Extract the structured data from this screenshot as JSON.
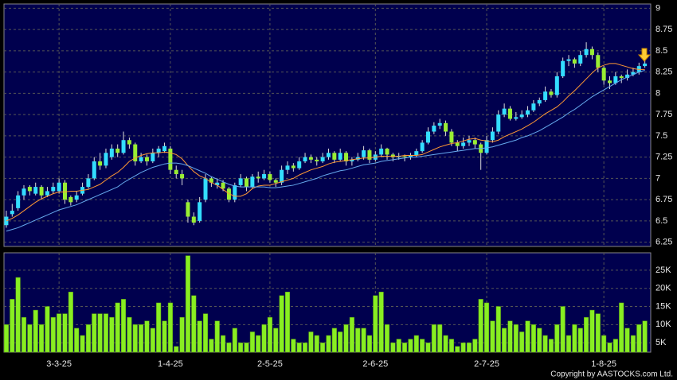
{
  "chart_data": [
    {
      "type": "candlestick",
      "up_color": "#33ddff",
      "down_color": "#99ee33",
      "wick_color": "#dddddd",
      "xlim": [
        -0.4,
        110
      ],
      "xticks": [
        {
          "value": 9,
          "label": "3-3-25"
        },
        {
          "value": 28,
          "label": "1-4-25"
        },
        {
          "value": 45,
          "label": "2-5-25"
        },
        {
          "value": 63,
          "label": "2-6-25"
        },
        {
          "value": 82,
          "label": "2-7-25"
        },
        {
          "value": 102,
          "label": "1-8-25"
        }
      ],
      "ylim": [
        6.2,
        9.05
      ],
      "yticks": [
        6.25,
        6.5,
        6.75,
        7,
        7.25,
        7.5,
        7.75,
        8,
        8.25,
        8.5,
        8.75,
        9
      ],
      "grid": true,
      "ohlc": [
        [
          6.45,
          6.62,
          6.42,
          6.55
        ],
        [
          6.58,
          6.7,
          6.55,
          6.62
        ],
        [
          6.65,
          6.85,
          6.62,
          6.8
        ],
        [
          6.8,
          6.92,
          6.75,
          6.88
        ],
        [
          6.9,
          6.92,
          6.8,
          6.85
        ],
        [
          6.82,
          6.95,
          6.8,
          6.9
        ],
        [
          6.9,
          6.92,
          6.75,
          6.8
        ],
        [
          6.8,
          6.9,
          6.78,
          6.85
        ],
        [
          6.85,
          6.95,
          6.82,
          6.9
        ],
        [
          6.85,
          7.0,
          6.82,
          6.95
        ],
        [
          6.95,
          6.98,
          6.7,
          6.75
        ],
        [
          6.78,
          6.8,
          6.68,
          6.72
        ],
        [
          6.75,
          6.85,
          6.72,
          6.8
        ],
        [
          6.82,
          6.95,
          6.8,
          6.9
        ],
        [
          6.9,
          7.05,
          6.88,
          7.0
        ],
        [
          7.0,
          7.25,
          6.98,
          7.2
        ],
        [
          7.2,
          7.3,
          7.1,
          7.15
        ],
        [
          7.15,
          7.35,
          7.12,
          7.3
        ],
        [
          7.25,
          7.4,
          7.22,
          7.35
        ],
        [
          7.35,
          7.4,
          7.25,
          7.3
        ],
        [
          7.3,
          7.55,
          7.28,
          7.45
        ],
        [
          7.45,
          7.48,
          7.35,
          7.4
        ],
        [
          7.4,
          7.42,
          7.15,
          7.2
        ],
        [
          7.2,
          7.3,
          7.18,
          7.25
        ],
        [
          7.25,
          7.28,
          7.15,
          7.2
        ],
        [
          7.2,
          7.35,
          7.18,
          7.3
        ],
        [
          7.3,
          7.38,
          7.25,
          7.35
        ],
        [
          7.32,
          7.42,
          7.3,
          7.38
        ],
        [
          7.35,
          7.38,
          7.05,
          7.1
        ],
        [
          7.1,
          7.15,
          7.0,
          7.05
        ],
        [
          7.05,
          7.1,
          6.92,
          7.0
        ],
        [
          6.72,
          6.75,
          6.48,
          6.55
        ],
        [
          6.55,
          6.6,
          6.45,
          6.48
        ],
        [
          6.5,
          6.78,
          6.48,
          6.72
        ],
        [
          6.75,
          7.05,
          6.72,
          7.0
        ],
        [
          7.0,
          7.02,
          6.9,
          6.95
        ],
        [
          6.92,
          7.0,
          6.88,
          6.95
        ],
        [
          6.95,
          6.98,
          6.85,
          6.88
        ],
        [
          6.88,
          6.9,
          6.72,
          6.75
        ],
        [
          6.75,
          6.95,
          6.72,
          6.92
        ],
        [
          6.92,
          7.05,
          6.9,
          7.0
        ],
        [
          7.0,
          7.02,
          6.85,
          6.9
        ],
        [
          6.9,
          7.05,
          6.88,
          7.02
        ],
        [
          7.02,
          7.08,
          6.95,
          7.0
        ],
        [
          7.0,
          7.1,
          6.98,
          7.05
        ],
        [
          7.05,
          7.08,
          6.95,
          6.98
        ],
        [
          6.98,
          7.0,
          6.9,
          6.95
        ],
        [
          6.95,
          7.15,
          6.92,
          7.1
        ],
        [
          7.1,
          7.2,
          7.05,
          7.15
        ],
        [
          7.15,
          7.18,
          7.08,
          7.12
        ],
        [
          7.12,
          7.25,
          7.1,
          7.2
        ],
        [
          7.2,
          7.3,
          7.18,
          7.25
        ],
        [
          7.25,
          7.28,
          7.18,
          7.22
        ],
        [
          7.22,
          7.25,
          7.15,
          7.2
        ],
        [
          7.2,
          7.3,
          7.18,
          7.25
        ],
        [
          7.25,
          7.35,
          7.22,
          7.3
        ],
        [
          7.3,
          7.32,
          7.18,
          7.22
        ],
        [
          7.22,
          7.35,
          7.2,
          7.3
        ],
        [
          7.3,
          7.32,
          7.15,
          7.2
        ],
        [
          7.2,
          7.25,
          7.15,
          7.22
        ],
        [
          7.22,
          7.3,
          7.2,
          7.25
        ],
        [
          7.25,
          7.38,
          7.22,
          7.33
        ],
        [
          7.33,
          7.35,
          7.18,
          7.22
        ],
        [
          7.22,
          7.32,
          7.2,
          7.28
        ],
        [
          7.28,
          7.4,
          7.25,
          7.35
        ],
        [
          7.35,
          7.36,
          7.22,
          7.28
        ],
        [
          7.28,
          7.3,
          7.2,
          7.25
        ],
        [
          7.25,
          7.3,
          7.22,
          7.26
        ],
        [
          7.26,
          7.28,
          7.2,
          7.25
        ],
        [
          7.25,
          7.3,
          7.22,
          7.27
        ],
        [
          7.27,
          7.35,
          7.25,
          7.32
        ],
        [
          7.32,
          7.45,
          7.3,
          7.42
        ],
        [
          7.42,
          7.6,
          7.4,
          7.55
        ],
        [
          7.55,
          7.66,
          7.52,
          7.62
        ],
        [
          7.62,
          7.7,
          7.58,
          7.65
        ],
        [
          7.65,
          7.68,
          7.5,
          7.55
        ],
        [
          7.55,
          7.58,
          7.38,
          7.42
        ],
        [
          7.42,
          7.45,
          7.32,
          7.38
        ],
        [
          7.38,
          7.48,
          7.35,
          7.42
        ],
        [
          7.42,
          7.5,
          7.38,
          7.45
        ],
        [
          7.45,
          7.48,
          7.35,
          7.4
        ],
        [
          7.4,
          7.42,
          7.1,
          7.3
        ],
        [
          7.3,
          7.5,
          7.28,
          7.45
        ],
        [
          7.45,
          7.6,
          7.42,
          7.55
        ],
        [
          7.55,
          7.8,
          7.52,
          7.75
        ],
        [
          7.75,
          7.88,
          7.72,
          7.82
        ],
        [
          7.82,
          7.85,
          7.68,
          7.7
        ],
        [
          7.7,
          7.78,
          7.68,
          7.72
        ],
        [
          7.72,
          7.8,
          7.7,
          7.75
        ],
        [
          7.75,
          7.85,
          7.72,
          7.8
        ],
        [
          7.8,
          7.92,
          7.78,
          7.88
        ],
        [
          7.88,
          7.95,
          7.85,
          7.92
        ],
        [
          7.92,
          8.08,
          7.9,
          8.02
        ],
        [
          8.02,
          8.05,
          7.95,
          7.98
        ],
        [
          7.98,
          8.25,
          7.95,
          8.2
        ],
        [
          8.2,
          8.42,
          8.18,
          8.38
        ],
        [
          8.38,
          8.45,
          8.32,
          8.4
        ],
        [
          8.4,
          8.42,
          8.3,
          8.35
        ],
        [
          8.35,
          8.5,
          8.32,
          8.45
        ],
        [
          8.45,
          8.6,
          8.42,
          8.52
        ],
        [
          8.52,
          8.55,
          8.4,
          8.45
        ],
        [
          8.45,
          8.48,
          8.25,
          8.3
        ],
        [
          8.3,
          8.32,
          8.1,
          8.15
        ],
        [
          8.15,
          8.2,
          8.05,
          8.12
        ],
        [
          8.12,
          8.25,
          8.1,
          8.2
        ],
        [
          8.2,
          8.22,
          8.12,
          8.18
        ],
        [
          8.18,
          8.28,
          8.15,
          8.22
        ],
        [
          8.22,
          8.3,
          8.2,
          8.25
        ],
        [
          8.25,
          8.36,
          8.22,
          8.32
        ],
        [
          8.32,
          8.4,
          8.3,
          8.35
        ]
      ],
      "series": [
        {
          "color": "#ff9933",
          "values": [
            6.5,
            6.53,
            6.57,
            6.62,
            6.67,
            6.72,
            6.76,
            6.79,
            6.82,
            6.84,
            6.84,
            6.85,
            6.85,
            6.86,
            6.87,
            6.9,
            6.93,
            6.98,
            7.03,
            7.07,
            7.13,
            7.2,
            7.24,
            7.27,
            7.29,
            7.3,
            7.3,
            7.31,
            7.3,
            7.28,
            7.23,
            7.15,
            7.08,
            7.03,
            7.0,
            6.95,
            6.92,
            6.87,
            6.82,
            6.79,
            6.79,
            6.82,
            6.88,
            6.91,
            6.92,
            6.92,
            6.94,
            6.96,
            6.98,
            7.0,
            7.04,
            7.07,
            7.1,
            7.12,
            7.14,
            7.17,
            7.19,
            7.2,
            7.21,
            7.22,
            7.23,
            7.24,
            7.24,
            7.25,
            7.26,
            7.26,
            7.26,
            7.26,
            7.27,
            7.27,
            7.27,
            7.28,
            7.31,
            7.34,
            7.37,
            7.39,
            7.41,
            7.42,
            7.44,
            7.46,
            7.47,
            7.45,
            7.44,
            7.43,
            7.45,
            7.49,
            7.52,
            7.55,
            7.58,
            7.62,
            7.66,
            7.71,
            7.76,
            7.8,
            7.84,
            7.9,
            7.97,
            8.03,
            8.1,
            8.17,
            8.24,
            8.3,
            8.33,
            8.35,
            8.35,
            8.33,
            8.31,
            8.29,
            8.28,
            8.28
          ]
        },
        {
          "color": "#66aaee",
          "values": [
            6.38,
            6.4,
            6.42,
            6.45,
            6.48,
            6.51,
            6.54,
            6.57,
            6.6,
            6.63,
            6.65,
            6.67,
            6.69,
            6.72,
            6.75,
            6.78,
            6.81,
            6.84,
            6.87,
            6.9,
            6.95,
            6.99,
            7.03,
            7.07,
            7.1,
            7.13,
            7.15,
            7.17,
            7.18,
            7.18,
            7.17,
            7.15,
            7.12,
            7.09,
            7.06,
            7.02,
            6.99,
            6.96,
            6.93,
            6.91,
            6.9,
            6.9,
            6.9,
            6.9,
            6.9,
            6.89,
            6.89,
            6.9,
            6.91,
            6.92,
            6.94,
            6.96,
            6.98,
            7.0,
            7.03,
            7.05,
            7.07,
            7.09,
            7.1,
            7.12,
            7.14,
            7.16,
            7.17,
            7.18,
            7.2,
            7.21,
            7.22,
            7.23,
            7.24,
            7.25,
            7.25,
            7.26,
            7.27,
            7.28,
            7.29,
            7.3,
            7.31,
            7.32,
            7.33,
            7.34,
            7.35,
            7.35,
            7.36,
            7.37,
            7.39,
            7.41,
            7.43,
            7.45,
            7.48,
            7.5,
            7.53,
            7.56,
            7.6,
            7.64,
            7.68,
            7.72,
            7.77,
            7.81,
            7.86,
            7.91,
            7.96,
            8.0,
            8.04,
            8.08,
            8.12,
            8.16,
            8.19,
            8.22,
            8.25,
            8.27
          ]
        }
      ]
    },
    {
      "type": "bar",
      "color": "#88ee22",
      "xlim": [
        -0.4,
        110
      ],
      "ylim": [
        2400,
        29800
      ],
      "yticks": [
        {
          "value": 5000,
          "label": "5K"
        },
        {
          "value": 10000,
          "label": "10K"
        },
        {
          "value": 15000,
          "label": "15K"
        },
        {
          "value": 20000,
          "label": "20K"
        },
        {
          "value": 25000,
          "label": "25K"
        }
      ],
      "grid": true,
      "values": [
        10000,
        17000,
        23000,
        12000,
        10000,
        14000,
        10000,
        15000,
        12000,
        13000,
        13000,
        19000,
        9000,
        7000,
        10000,
        13000,
        13000,
        13000,
        12000,
        16000,
        17000,
        12000,
        10000,
        10000,
        11000,
        9000,
        16000,
        11000,
        16000,
        4000,
        12000,
        29000,
        18000,
        11000,
        13000,
        6000,
        11000,
        7000,
        5000,
        9000,
        5000,
        5000,
        8000,
        7000,
        10000,
        12000,
        9000,
        18000,
        19000,
        6000,
        5000,
        5000,
        8000,
        7000,
        5000,
        7000,
        9000,
        8000,
        10000,
        12000,
        9000,
        9000,
        7000,
        18000,
        19000,
        10000,
        5000,
        6000,
        5000,
        6000,
        7000,
        6000,
        5000,
        10000,
        10000,
        7000,
        6000,
        4000,
        5000,
        5000,
        6000,
        17000,
        16000,
        11000,
        15000,
        9000,
        11000,
        10000,
        8000,
        11000,
        10000,
        9000,
        7000,
        6000,
        10000,
        15000,
        7000,
        10000,
        9000,
        12000,
        14000,
        13000,
        7000,
        5000,
        6000,
        16000,
        9000,
        7000,
        10000,
        11000
      ]
    },
    {
      "type": "text",
      "text": "Copyright by AASTOCKS.com Ltd."
    }
  ]
}
